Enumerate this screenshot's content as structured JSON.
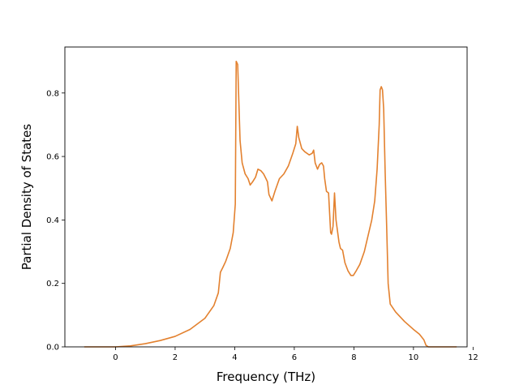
{
  "chart_data": {
    "type": "line",
    "title": "",
    "xlabel": "Frequency (THz)",
    "ylabel": "Partial Density of States",
    "xlim": [
      -1.7,
      11.8
    ],
    "ylim": [
      0.0,
      0.945
    ],
    "xticks": [
      0,
      2,
      4,
      6,
      8,
      10,
      12
    ],
    "yticks": [
      0.0,
      0.2,
      0.4,
      0.6,
      0.8
    ],
    "xtick_labels": [
      "0",
      "2",
      "4",
      "6",
      "8",
      "10",
      "12"
    ],
    "ytick_labels": [
      "0.0",
      "0.2",
      "0.4",
      "0.6",
      "0.8"
    ],
    "grid": false,
    "legend": "none",
    "series": [
      {
        "color": "#e3812f",
        "points": [
          [
            -1.05,
            0.0
          ],
          [
            -0.5,
            0.0
          ],
          [
            0.0,
            0.0
          ],
          [
            0.5,
            0.003
          ],
          [
            1.0,
            0.01
          ],
          [
            1.5,
            0.02
          ],
          [
            2.0,
            0.033
          ],
          [
            2.5,
            0.055
          ],
          [
            3.0,
            0.09
          ],
          [
            3.3,
            0.13
          ],
          [
            3.45,
            0.17
          ],
          [
            3.52,
            0.235
          ],
          [
            3.6,
            0.25
          ],
          [
            3.7,
            0.27
          ],
          [
            3.85,
            0.31
          ],
          [
            3.95,
            0.36
          ],
          [
            4.02,
            0.45
          ],
          [
            4.05,
            0.9
          ],
          [
            4.1,
            0.89
          ],
          [
            4.13,
            0.8
          ],
          [
            4.18,
            0.65
          ],
          [
            4.25,
            0.58
          ],
          [
            4.35,
            0.545
          ],
          [
            4.45,
            0.53
          ],
          [
            4.52,
            0.51
          ],
          [
            4.6,
            0.52
          ],
          [
            4.7,
            0.535
          ],
          [
            4.78,
            0.56
          ],
          [
            4.88,
            0.555
          ],
          [
            4.97,
            0.545
          ],
          [
            5.05,
            0.53
          ],
          [
            5.1,
            0.52
          ],
          [
            5.15,
            0.48
          ],
          [
            5.25,
            0.46
          ],
          [
            5.35,
            0.49
          ],
          [
            5.5,
            0.53
          ],
          [
            5.65,
            0.545
          ],
          [
            5.8,
            0.57
          ],
          [
            5.95,
            0.61
          ],
          [
            6.05,
            0.64
          ],
          [
            6.1,
            0.695
          ],
          [
            6.15,
            0.66
          ],
          [
            6.25,
            0.625
          ],
          [
            6.35,
            0.615
          ],
          [
            6.5,
            0.605
          ],
          [
            6.6,
            0.61
          ],
          [
            6.65,
            0.62
          ],
          [
            6.7,
            0.58
          ],
          [
            6.78,
            0.56
          ],
          [
            6.85,
            0.575
          ],
          [
            6.92,
            0.58
          ],
          [
            6.98,
            0.57
          ],
          [
            7.02,
            0.53
          ],
          [
            7.08,
            0.49
          ],
          [
            7.15,
            0.485
          ],
          [
            7.22,
            0.36
          ],
          [
            7.25,
            0.355
          ],
          [
            7.3,
            0.38
          ],
          [
            7.35,
            0.485
          ],
          [
            7.4,
            0.4
          ],
          [
            7.5,
            0.33
          ],
          [
            7.55,
            0.31
          ],
          [
            7.62,
            0.305
          ],
          [
            7.7,
            0.265
          ],
          [
            7.8,
            0.24
          ],
          [
            7.9,
            0.225
          ],
          [
            7.98,
            0.225
          ],
          [
            8.08,
            0.24
          ],
          [
            8.2,
            0.26
          ],
          [
            8.35,
            0.3
          ],
          [
            8.5,
            0.36
          ],
          [
            8.6,
            0.4
          ],
          [
            8.7,
            0.46
          ],
          [
            8.78,
            0.56
          ],
          [
            8.85,
            0.7
          ],
          [
            8.88,
            0.81
          ],
          [
            8.92,
            0.82
          ],
          [
            8.96,
            0.81
          ],
          [
            9.0,
            0.75
          ],
          [
            9.05,
            0.55
          ],
          [
            9.1,
            0.38
          ],
          [
            9.15,
            0.2
          ],
          [
            9.22,
            0.135
          ],
          [
            9.4,
            0.11
          ],
          [
            9.7,
            0.08
          ],
          [
            10.0,
            0.055
          ],
          [
            10.2,
            0.04
          ],
          [
            10.35,
            0.022
          ],
          [
            10.42,
            0.005
          ],
          [
            10.5,
            0.0
          ],
          [
            11.0,
            0.0
          ],
          [
            11.45,
            0.0
          ]
        ]
      }
    ]
  }
}
